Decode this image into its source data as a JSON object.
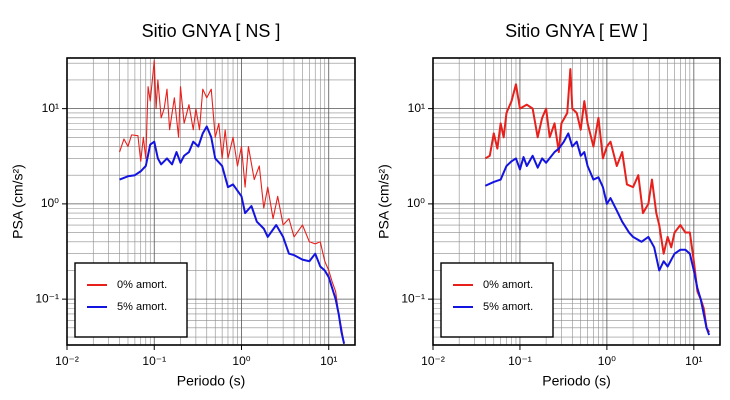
{
  "chart_data": [
    {
      "type": "line",
      "title": "Sitio GNYA [ NS ]",
      "x_label": "Periodo (s)",
      "y_label": "PSA (cm/s²)",
      "log_x": true,
      "log_y": true,
      "grid": true,
      "minor_grid": true,
      "legend": "lower left",
      "xlim": [
        0.01,
        20
      ],
      "ylim": [
        0.033,
        34
      ],
      "xticks": [
        {
          "value": 0.01,
          "label": "10⁻²"
        },
        {
          "value": 0.1,
          "label": "10⁻¹"
        },
        {
          "value": 1,
          "label": "10⁰"
        },
        {
          "value": 10,
          "label": "10¹"
        }
      ],
      "yticks": [
        {
          "value": 0.1,
          "label": "10⁻¹"
        },
        {
          "value": 1,
          "label": "10⁰"
        },
        {
          "value": 10,
          "label": "10¹"
        }
      ],
      "series": [
        {
          "name": "0% amort.",
          "color": "#e8201c",
          "width": 1.1,
          "x": [
            0.04,
            0.045,
            0.05,
            0.055,
            0.065,
            0.07,
            0.075,
            0.08,
            0.085,
            0.09,
            0.1,
            0.105,
            0.11,
            0.12,
            0.13,
            0.14,
            0.15,
            0.17,
            0.19,
            0.2,
            0.22,
            0.25,
            0.28,
            0.3,
            0.33,
            0.36,
            0.4,
            0.45,
            0.5,
            0.55,
            0.6,
            0.65,
            0.7,
            0.8,
            0.9,
            1.0,
            1.1,
            1.2,
            1.4,
            1.6,
            1.8,
            2.0,
            2.3,
            2.6,
            3.0,
            3.5,
            4.0,
            5.0,
            6.0,
            7.0,
            8.0,
            9.0,
            10,
            11,
            12,
            13,
            14,
            15
          ],
          "values": [
            3.5,
            4.8,
            4.0,
            5.3,
            5.2,
            2.8,
            5.0,
            3.0,
            17,
            12,
            32,
            10,
            20,
            8,
            10,
            16,
            6,
            13,
            5,
            17,
            7,
            11,
            6,
            10,
            6,
            16,
            13,
            16,
            5,
            7,
            3,
            6,
            3,
            5,
            2.5,
            4,
            1.5,
            4,
            1.8,
            2.5,
            0.9,
            1.5,
            0.7,
            1.2,
            0.6,
            0.7,
            0.45,
            0.6,
            0.4,
            0.38,
            0.4,
            0.25,
            0.2,
            0.15,
            0.12,
            0.07,
            0.05,
            0.034
          ]
        },
        {
          "name": "5% amort.",
          "color": "#1414e0",
          "width": 2,
          "x": [
            0.04,
            0.05,
            0.06,
            0.07,
            0.08,
            0.09,
            0.1,
            0.11,
            0.12,
            0.14,
            0.16,
            0.18,
            0.2,
            0.22,
            0.25,
            0.28,
            0.32,
            0.36,
            0.4,
            0.45,
            0.5,
            0.6,
            0.7,
            0.8,
            1.0,
            1.1,
            1.3,
            1.5,
            1.8,
            2.0,
            2.5,
            3.0,
            3.5,
            4.0,
            5.0,
            6.0,
            7.0,
            8.0,
            9.0,
            10,
            12,
            13,
            14,
            15
          ],
          "values": [
            1.8,
            1.95,
            2.0,
            2.2,
            2.5,
            4.2,
            4.5,
            3.0,
            2.6,
            3.0,
            2.6,
            3.5,
            2.7,
            3.2,
            3.5,
            4.5,
            4.0,
            5.5,
            6.5,
            5.0,
            3.0,
            2.5,
            1.5,
            1.6,
            1.2,
            0.8,
            0.95,
            0.65,
            0.55,
            0.45,
            0.6,
            0.45,
            0.3,
            0.29,
            0.26,
            0.25,
            0.3,
            0.22,
            0.2,
            0.17,
            0.1,
            0.07,
            0.045,
            0.034
          ]
        }
      ]
    },
    {
      "type": "line",
      "title": "Sitio GNYA [ EW ]",
      "x_label": "Periodo (s)",
      "y_label": "PSA (cm/s²)",
      "log_x": true,
      "log_y": true,
      "grid": true,
      "minor_grid": true,
      "legend": "lower left",
      "xlim": [
        0.01,
        20
      ],
      "ylim": [
        0.033,
        34
      ],
      "xticks": [
        {
          "value": 0.01,
          "label": "10⁻²"
        },
        {
          "value": 0.1,
          "label": "10⁻¹"
        },
        {
          "value": 1,
          "label": "10⁰"
        },
        {
          "value": 10,
          "label": "10¹"
        }
      ],
      "yticks": [
        {
          "value": 0.1,
          "label": "10⁻¹"
        },
        {
          "value": 1,
          "label": "10⁰"
        },
        {
          "value": 10,
          "label": "10¹"
        }
      ],
      "series": [
        {
          "name": "0% amort.",
          "color": "#e8201c",
          "width": 2,
          "x": [
            0.04,
            0.045,
            0.05,
            0.055,
            0.06,
            0.065,
            0.07,
            0.08,
            0.09,
            0.1,
            0.12,
            0.14,
            0.16,
            0.18,
            0.2,
            0.22,
            0.25,
            0.28,
            0.3,
            0.35,
            0.38,
            0.4,
            0.45,
            0.5,
            0.55,
            0.6,
            0.7,
            0.8,
            0.9,
            1.0,
            1.1,
            1.3,
            1.5,
            1.7,
            2.0,
            2.3,
            2.6,
            3.0,
            3.3,
            3.7,
            4.0,
            4.5,
            5.0,
            5.5,
            6.0,
            7.0,
            8,
            9,
            10,
            11,
            12,
            13,
            14,
            15
          ],
          "values": [
            3.0,
            3.2,
            5.5,
            3.8,
            7,
            5,
            9,
            12,
            18,
            10,
            11,
            10,
            5,
            8,
            10,
            5,
            7,
            3.5,
            7,
            9,
            26,
            10,
            9,
            6,
            12,
            7,
            4,
            8,
            3,
            4,
            4.5,
            2.5,
            3.5,
            1.6,
            1.5,
            2.0,
            0.8,
            1.0,
            1.8,
            0.8,
            0.6,
            0.3,
            0.45,
            0.35,
            0.5,
            0.6,
            0.5,
            0.5,
            0.25,
            0.12,
            0.1,
            0.08,
            0.05,
            0.045
          ]
        },
        {
          "name": "5% amort.",
          "color": "#1414e0",
          "width": 2,
          "x": [
            0.04,
            0.05,
            0.06,
            0.07,
            0.08,
            0.09,
            0.1,
            0.11,
            0.12,
            0.14,
            0.16,
            0.18,
            0.2,
            0.25,
            0.28,
            0.32,
            0.36,
            0.4,
            0.45,
            0.5,
            0.55,
            0.6,
            0.7,
            0.8,
            0.9,
            1.0,
            1.1,
            1.3,
            1.5,
            1.8,
            2.0,
            2.5,
            3.0,
            3.5,
            4.0,
            4.5,
            5.0,
            6.0,
            7,
            8,
            9,
            10,
            11,
            12,
            13,
            14,
            15
          ],
          "values": [
            1.55,
            1.7,
            1.8,
            2.5,
            2.8,
            3.0,
            2.3,
            3.1,
            2.5,
            3.2,
            2.4,
            3.0,
            2.7,
            3.5,
            3.8,
            4.5,
            5.5,
            4.0,
            4.5,
            3.2,
            3.5,
            2.5,
            1.8,
            1.9,
            1.5,
            1.0,
            1.15,
            0.85,
            0.65,
            0.5,
            0.45,
            0.4,
            0.45,
            0.35,
            0.2,
            0.25,
            0.22,
            0.3,
            0.33,
            0.33,
            0.3,
            0.2,
            0.13,
            0.1,
            0.07,
            0.05,
            0.042
          ]
        }
      ]
    }
  ]
}
